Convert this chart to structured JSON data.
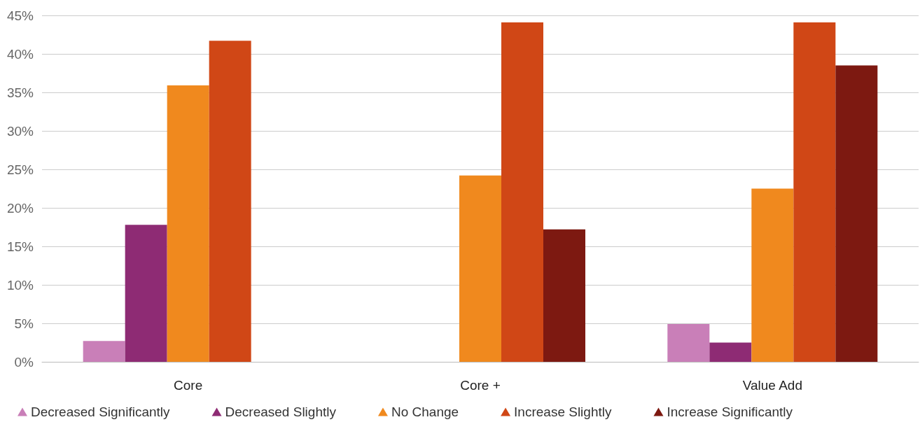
{
  "chart_data": {
    "type": "bar",
    "categories": [
      "Core",
      "Core +",
      "Value Add"
    ],
    "series": [
      {
        "name": "Decreased Significantly",
        "color": "#c97fb8",
        "values": [
          2.7,
          0,
          4.9
        ]
      },
      {
        "name": "Decreased Slightly",
        "color": "#8e2b74",
        "values": [
          17.8,
          0,
          2.5
        ]
      },
      {
        "name": "No Change",
        "color": "#f0891e",
        "values": [
          35.9,
          24.2,
          22.5
        ]
      },
      {
        "name": "Increase Slightly",
        "color": "#d04716",
        "values": [
          41.7,
          44.1,
          44.1
        ]
      },
      {
        "name": "Increase Significantly",
        "color": "#7d1911",
        "values": [
          0,
          17.2,
          38.5
        ]
      }
    ],
    "ylim": [
      0,
      45
    ],
    "yticks": [
      {
        "value": 0,
        "label": "0%"
      },
      {
        "value": 5,
        "label": "5%"
      },
      {
        "value": 10,
        "label": "10%"
      },
      {
        "value": 15,
        "label": "15%"
      },
      {
        "value": 20,
        "label": "20%"
      },
      {
        "value": 25,
        "label": "25%"
      },
      {
        "value": 30,
        "label": "30%"
      },
      {
        "value": 35,
        "label": "35%"
      },
      {
        "value": 40,
        "label": "40%"
      },
      {
        "value": 45,
        "label": "45%"
      }
    ],
    "grid": "y",
    "legend": "bottom",
    "marker": "triangle"
  }
}
